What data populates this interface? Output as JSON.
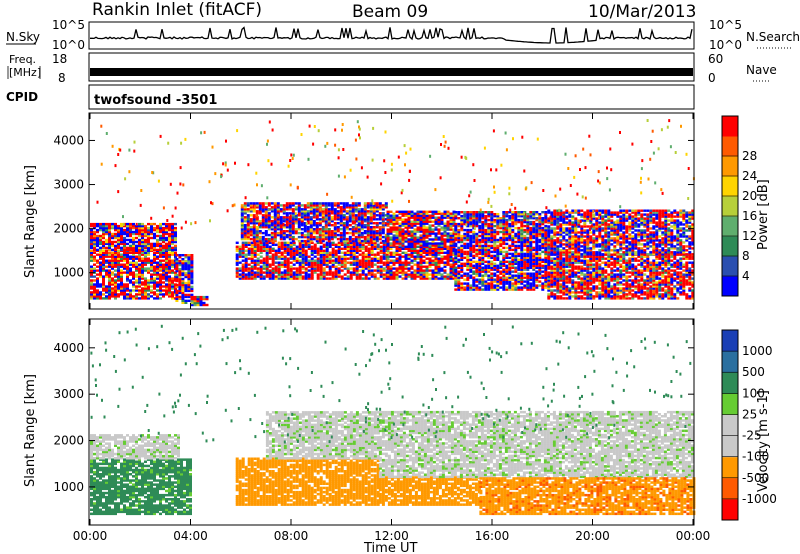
{
  "header": {
    "station": "Rankin Inlet (fitACF)",
    "beam": "Beam 09",
    "date": "10/Mar/2013"
  },
  "noise_panel": {
    "left_label": "N.Sky",
    "right_label": "N.Search",
    "left_ticks": [
      "10^5",
      "10^0"
    ],
    "right_ticks": [
      "10^5",
      "10^0"
    ]
  },
  "freq_panel": {
    "left_label_1": "Freq.",
    "left_label_2": "[MHz]",
    "right_label": "Nave",
    "left_ticks": [
      "18",
      "8"
    ],
    "right_ticks": [
      "60",
      "0"
    ]
  },
  "cpid": {
    "label": "CPID",
    "value": "twofsound -3501"
  },
  "colors": {
    "power_scale": [
      "#0000ff",
      "#2a4fb0",
      "#2e8b57",
      "#5fae6e",
      "#b7cf3a",
      "#ffd400",
      "#ff9900",
      "#ff5a00",
      "#ff0000"
    ],
    "velocity_scale": [
      "#ff0000",
      "#ff5a00",
      "#ff9900",
      "#c9c9c9",
      "#c9c9c9",
      "#66cc33",
      "#2e8b57",
      "#2a6f9f",
      "#1a3fb5"
    ]
  },
  "chart_data": [
    {
      "type": "heatmap",
      "panel": "power",
      "ylabel": "Slant Range [km]",
      "y_ticks": [
        1000,
        2000,
        3000,
        4000
      ],
      "ylim": [
        200,
        4600
      ],
      "x_ticks": [
        "00:00",
        "04:00",
        "08:00",
        "12:00",
        "16:00",
        "20:00",
        "00:00"
      ],
      "xlim_hours": [
        0,
        24
      ],
      "colorbar": {
        "label": "Power [dB]",
        "ticks": [
          4,
          8,
          12,
          16,
          20,
          24,
          28
        ],
        "range": [
          0,
          32
        ]
      },
      "bands": [
        {
          "from_h": 0.0,
          "to_h": 3.4,
          "low_km": 400,
          "high_km": 1500,
          "level": 26
        },
        {
          "from_h": 0.0,
          "to_h": 3.4,
          "low_km": 1500,
          "high_km": 2100,
          "level": 18
        },
        {
          "from_h": 3.4,
          "to_h": 4.0,
          "low_km": 300,
          "high_km": 1400,
          "level": 10
        },
        {
          "from_h": 4.0,
          "to_h": 4.6,
          "low_km": 250,
          "high_km": 450,
          "level": 22
        },
        {
          "from_h": 5.8,
          "to_h": 11.8,
          "low_km": 850,
          "high_km": 1700,
          "level": 27
        },
        {
          "from_h": 6.0,
          "to_h": 11.8,
          "low_km": 1700,
          "high_km": 2600,
          "level": 15
        },
        {
          "from_h": 11.8,
          "to_h": 14.5,
          "low_km": 850,
          "high_km": 1600,
          "level": 26
        },
        {
          "from_h": 11.8,
          "to_h": 14.5,
          "low_km": 1600,
          "high_km": 2400,
          "level": 16
        },
        {
          "from_h": 14.5,
          "to_h": 18.2,
          "low_km": 600,
          "high_km": 2400,
          "level": 12
        },
        {
          "from_h": 18.2,
          "to_h": 24.0,
          "low_km": 400,
          "high_km": 1400,
          "level": 27
        },
        {
          "from_h": 18.2,
          "to_h": 24.0,
          "low_km": 1400,
          "high_km": 2400,
          "level": 14
        }
      ]
    },
    {
      "type": "heatmap",
      "panel": "velocity",
      "ylabel": "Slant Range [km]",
      "xlabel": "Time UT",
      "y_ticks": [
        1000,
        2000,
        3000,
        4000
      ],
      "ylim": [
        200,
        4600
      ],
      "x_ticks": [
        "00:00",
        "04:00",
        "08:00",
        "12:00",
        "16:00",
        "20:00",
        "00:00"
      ],
      "xlim_hours": [
        0,
        24
      ],
      "colorbar": {
        "label": "Velocity [m s-1]",
        "ticks": [
          "-1000",
          "-500",
          "-100",
          "-25",
          "25",
          "100",
          "500",
          "1000"
        ],
        "range": [
          -1200,
          1200
        ]
      },
      "bands": [
        {
          "from_h": 0.0,
          "to_h": 4.0,
          "low_km": 400,
          "high_km": 1600,
          "level": 150
        },
        {
          "from_h": 0.0,
          "to_h": 3.5,
          "low_km": 1600,
          "high_km": 2100,
          "level": 0
        },
        {
          "from_h": 5.8,
          "to_h": 11.5,
          "low_km": 600,
          "high_km": 1600,
          "level": -200
        },
        {
          "from_h": 7.0,
          "to_h": 11.5,
          "low_km": 1600,
          "high_km": 2600,
          "level": 0
        },
        {
          "from_h": 11.5,
          "to_h": 15.5,
          "low_km": 600,
          "high_km": 1200,
          "level": -300
        },
        {
          "from_h": 11.5,
          "to_h": 24.0,
          "low_km": 1200,
          "high_km": 2600,
          "level": 0
        },
        {
          "from_h": 15.5,
          "to_h": 24.0,
          "low_km": 400,
          "high_km": 1200,
          "level": -400
        }
      ]
    }
  ]
}
